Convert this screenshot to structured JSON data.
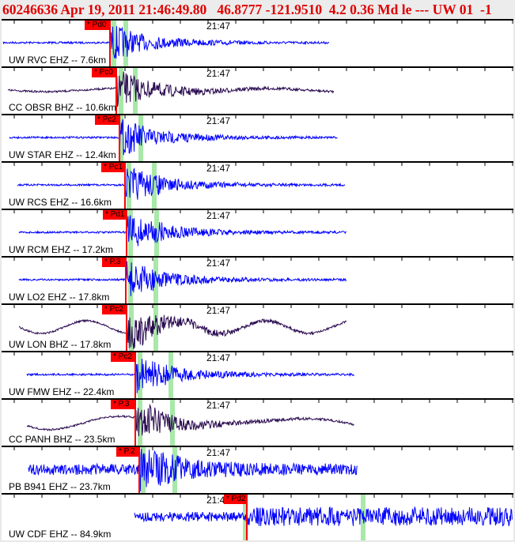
{
  "header": {
    "title": "60246636 Apr 19, 2011 21:46:49.80   46.8777 -121.9510  4.2 0.36 Md le --- UW 01  -1"
  },
  "colors": {
    "header_text": "#e00000",
    "pick_box": "#ff0000",
    "pick_line": "#ff0000",
    "green_marker": "#a8e8a8",
    "short_period_trace": "#0000ff",
    "broadband_trace": "#2a0a50"
  },
  "time_label": "21:47",
  "panels": [
    {
      "station": "UW RVC EHZ -- 7.6km",
      "pick": "* Pd0",
      "trace": "blue",
      "icon": "waveform"
    },
    {
      "station": "CC OBSR BHZ -- 10.6km",
      "pick": "* Pc0",
      "trace": "purple",
      "icon": "waveform"
    },
    {
      "station": "UW STAR EHZ -- 12.4km",
      "pick": "* Pc2",
      "trace": "blue",
      "icon": "waveform"
    },
    {
      "station": "UW RCS EHZ -- 16.6km",
      "pick": "* Pc1",
      "trace": "blue",
      "icon": "waveform"
    },
    {
      "station": "UW RCM EHZ -- 17.2km",
      "pick": "* Pd1",
      "trace": "blue",
      "icon": "waveform"
    },
    {
      "station": "UW LO2 EHZ -- 17.8km",
      "pick": "* P.3",
      "trace": "blue",
      "icon": "waveform"
    },
    {
      "station": "UW LON BHZ -- 17.8km",
      "pick": "* Pc2",
      "trace": "purple",
      "icon": "waveform"
    },
    {
      "station": "UW FMW EHZ -- 22.4km",
      "pick": "* Pc2",
      "trace": "blue",
      "icon": "waveform"
    },
    {
      "station": "CC PANH BHZ -- 23.5km",
      "pick": "* P.3",
      "trace": "purple",
      "icon": "waveform"
    },
    {
      "station": "PB B941 EHZ -- 23.7km",
      "pick": "* P.2",
      "trace": "blue",
      "icon": "waveform"
    },
    {
      "station": "UW CDF EHZ -- 84.9km",
      "pick": "* Pd2",
      "trace": "blue",
      "icon": "waveform"
    }
  ]
}
